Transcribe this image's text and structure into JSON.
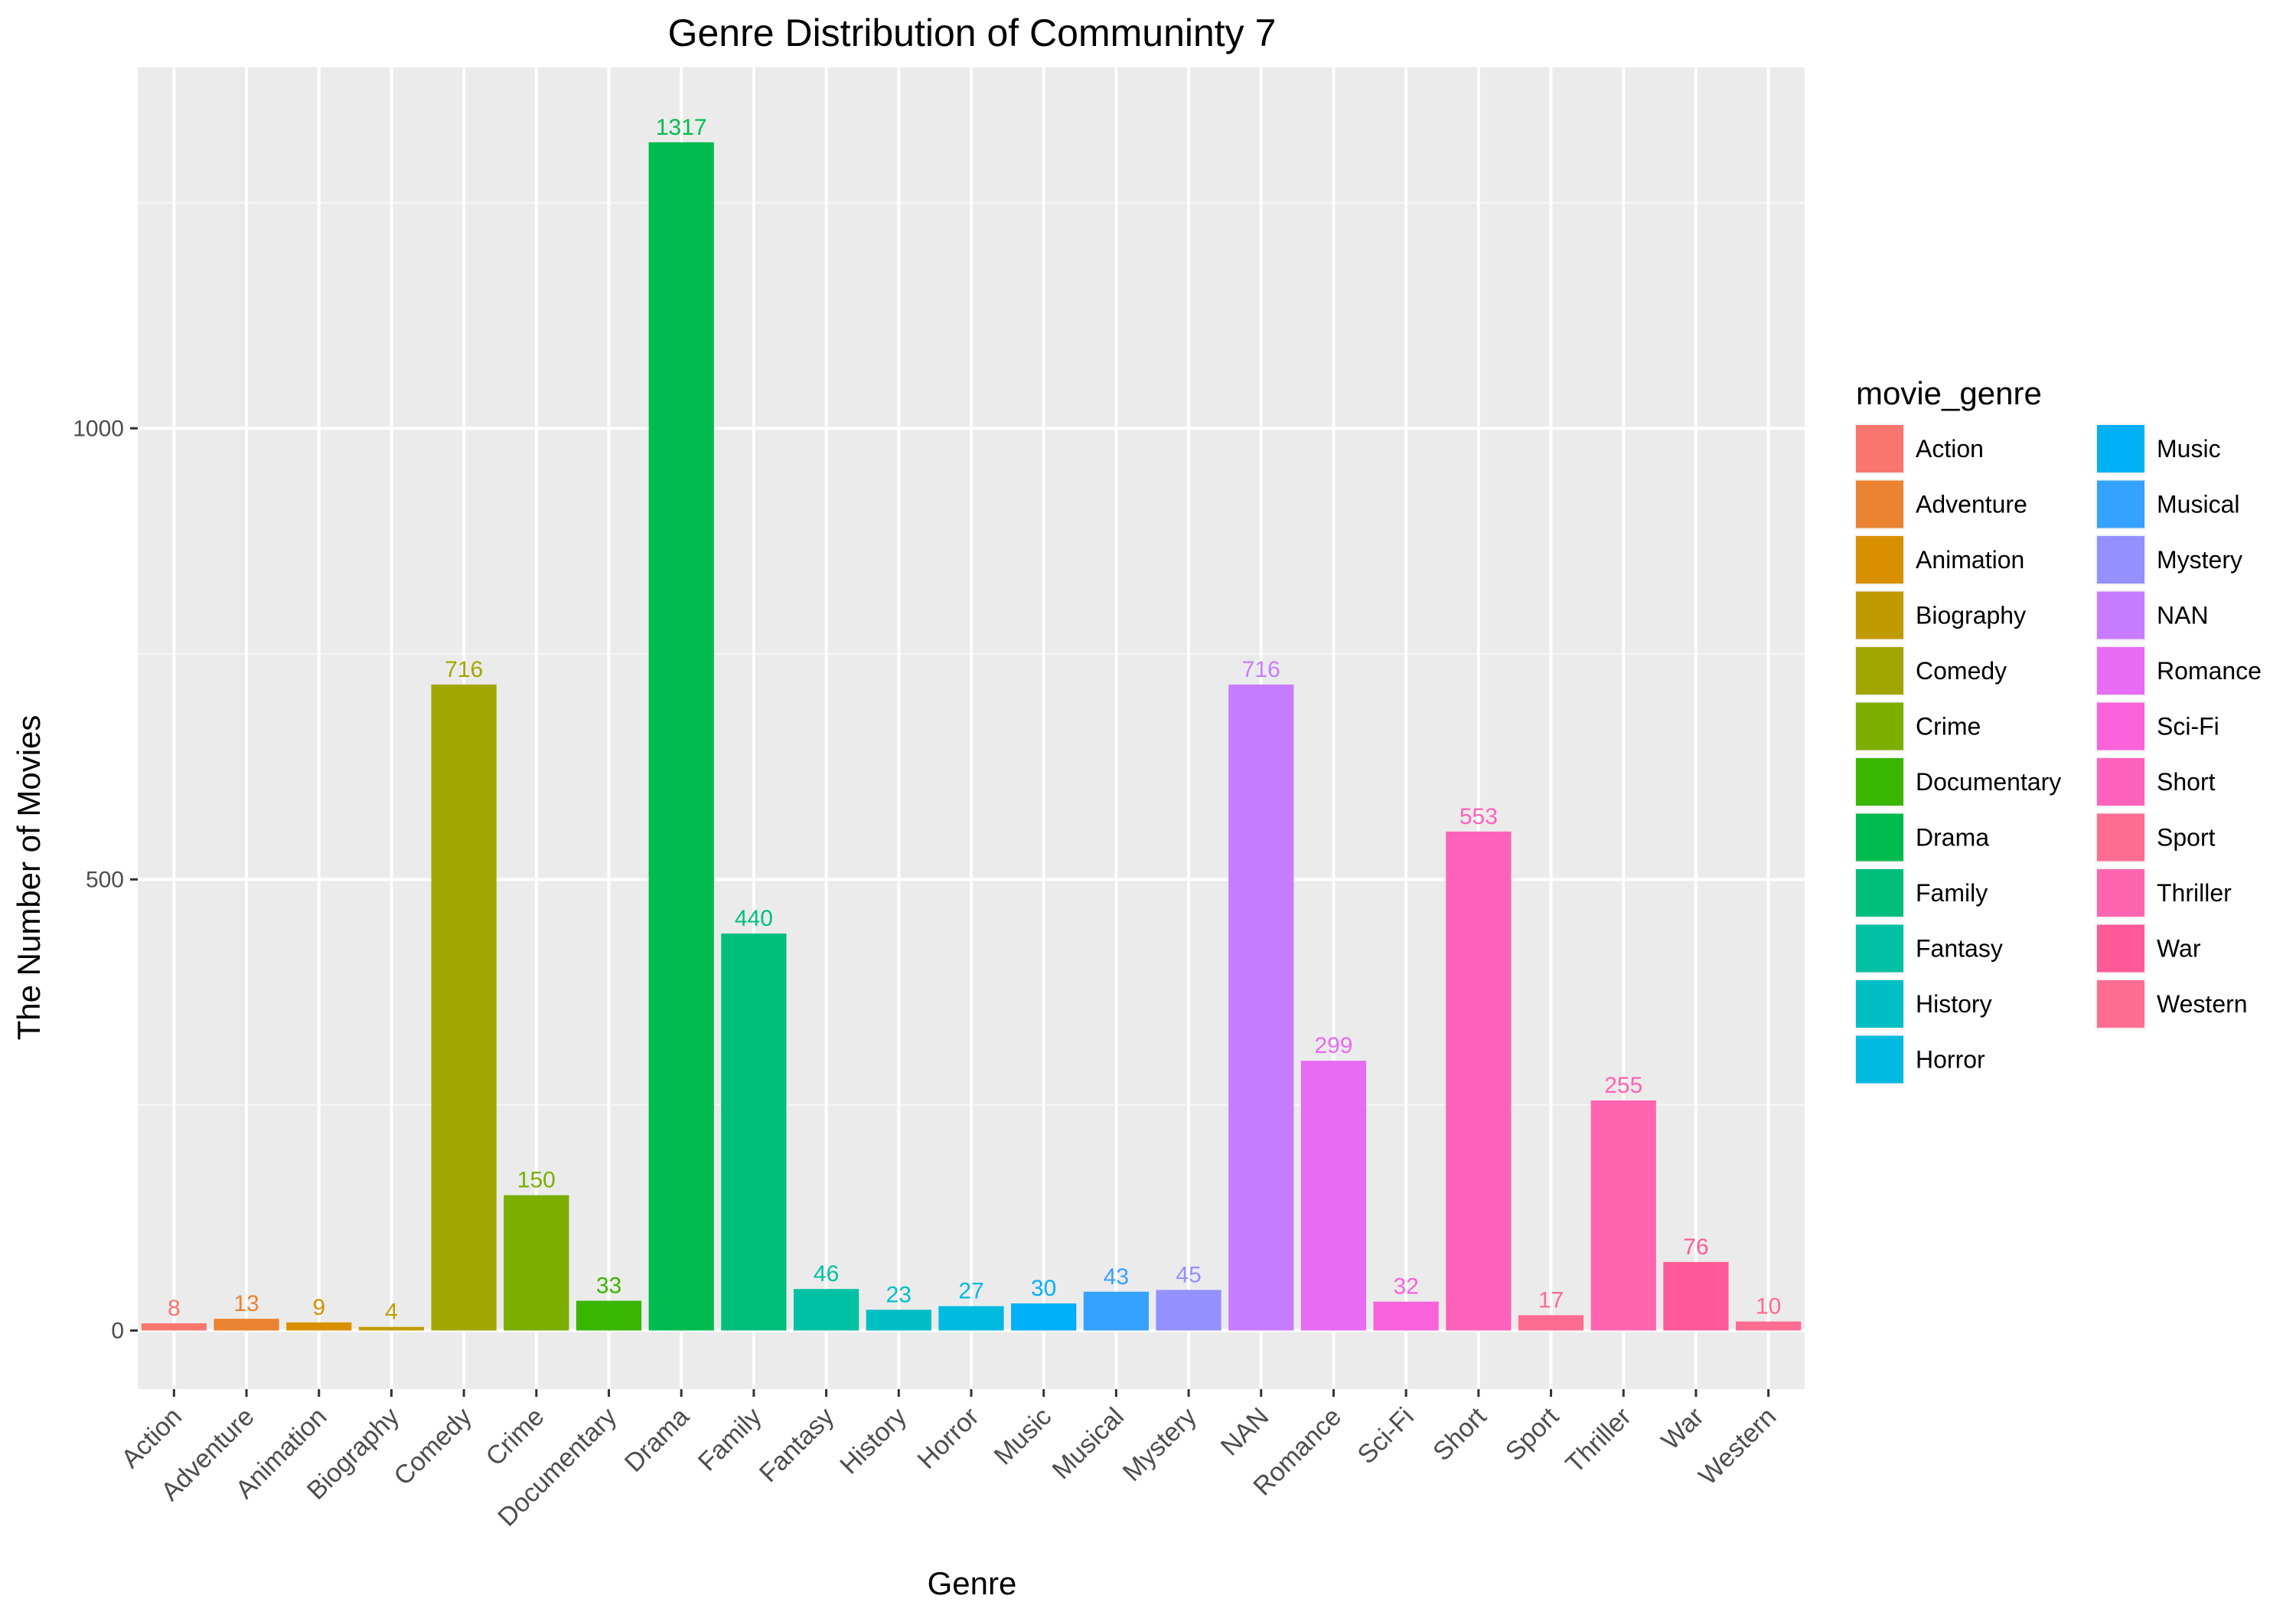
{
  "chart_data": {
    "type": "bar",
    "title": "Genre Distribution of Communinty 7",
    "xlabel": "Genre",
    "ylabel": "The Number of Movies",
    "ylim": [
      -65,
      1400
    ],
    "yticks": [
      0,
      500,
      1000
    ],
    "grid": true,
    "legend_title": "movie_genre",
    "legend_position": "right",
    "categories": [
      "Action",
      "Adventure",
      "Animation",
      "Biography",
      "Comedy",
      "Crime",
      "Documentary",
      "Drama",
      "Family",
      "Fantasy",
      "History",
      "Horror",
      "Music",
      "Musical",
      "Mystery",
      "NAN",
      "Romance",
      "Sci-Fi",
      "Short",
      "Sport",
      "Thriller",
      "War",
      "Western"
    ],
    "values": [
      8,
      13,
      9,
      4,
      716,
      150,
      33,
      1317,
      440,
      46,
      23,
      27,
      30,
      43,
      45,
      716,
      299,
      32,
      553,
      17,
      255,
      76,
      10
    ],
    "colors": [
      "#F8766D",
      "#EA8331",
      "#D89000",
      "#C09B00",
      "#A3A500",
      "#7CAE00",
      "#39B600",
      "#00BB4E",
      "#00BF7D",
      "#00C1A3",
      "#00BFC4",
      "#00BAE0",
      "#00B0F6",
      "#35A2FF",
      "#9590FF",
      "#C77CFF",
      "#E76BF3",
      "#FA62DB",
      "#FF62BC",
      "#FF6C91",
      "#FF64B0",
      "#FF5A97",
      "#FF6C91"
    ]
  }
}
